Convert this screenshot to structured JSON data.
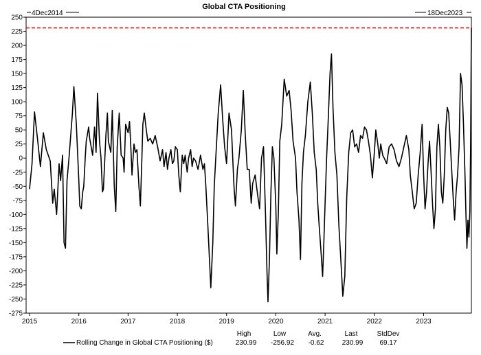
{
  "chart_data": {
    "type": "line",
    "title": "Global CTA Positioning",
    "range_start_label": "4Dec2014",
    "range_end_label": "18Dec2023",
    "x_ticks": [
      "2015",
      "2016",
      "2017",
      "2018",
      "2019",
      "2020",
      "2021",
      "2022",
      "2023"
    ],
    "y_ticks": [
      250,
      225,
      200,
      175,
      150,
      125,
      100,
      75,
      50,
      25,
      0,
      -25,
      -50,
      -75,
      -100,
      -125,
      -150,
      -175,
      -200,
      -225,
      -250,
      -275
    ],
    "xlim": [
      2014.93,
      2023.97
    ],
    "ylim": [
      -275,
      250
    ],
    "grid": false,
    "reference_line": {
      "value": 230.99,
      "color": "#e0191b",
      "style": "dashed"
    },
    "series": [
      {
        "name": "Rolling Change in Global CTA Positioning ($)",
        "color": "#000000",
        "points": [
          [
            2015.0,
            -55
          ],
          [
            2015.05,
            -10
          ],
          [
            2015.1,
            82
          ],
          [
            2015.16,
            35
          ],
          [
            2015.22,
            -15
          ],
          [
            2015.28,
            45
          ],
          [
            2015.34,
            15
          ],
          [
            2015.42,
            -5
          ],
          [
            2015.47,
            -80
          ],
          [
            2015.5,
            -55
          ],
          [
            2015.55,
            -100
          ],
          [
            2015.6,
            -10
          ],
          [
            2015.63,
            -40
          ],
          [
            2015.67,
            5
          ],
          [
            2015.7,
            -150
          ],
          [
            2015.73,
            -160
          ],
          [
            2015.76,
            -40
          ],
          [
            2015.8,
            0
          ],
          [
            2015.87,
            80
          ],
          [
            2015.9,
            127
          ],
          [
            2015.95,
            60
          ],
          [
            2016.0,
            -40
          ],
          [
            2016.02,
            -85
          ],
          [
            2016.05,
            -90
          ],
          [
            2016.08,
            -60
          ],
          [
            2016.1,
            -50
          ],
          [
            2016.13,
            0
          ],
          [
            2016.15,
            30
          ],
          [
            2016.2,
            55
          ],
          [
            2016.22,
            35
          ],
          [
            2016.28,
            5
          ],
          [
            2016.32,
            55
          ],
          [
            2016.35,
            10
          ],
          [
            2016.38,
            115
          ],
          [
            2016.42,
            30
          ],
          [
            2016.45,
            0
          ],
          [
            2016.48,
            -60
          ],
          [
            2016.5,
            -55
          ],
          [
            2016.55,
            40
          ],
          [
            2016.58,
            80
          ],
          [
            2016.6,
            30
          ],
          [
            2016.65,
            10
          ],
          [
            2016.68,
            85
          ],
          [
            2016.72,
            -50
          ],
          [
            2016.75,
            -95
          ],
          [
            2016.78,
            20
          ],
          [
            2016.82,
            80
          ],
          [
            2016.86,
            5
          ],
          [
            2016.9,
            0
          ],
          [
            2016.92,
            -25
          ],
          [
            2016.95,
            60
          ],
          [
            2017.0,
            45
          ],
          [
            2017.03,
            65
          ],
          [
            2017.05,
            30
          ],
          [
            2017.08,
            -30
          ],
          [
            2017.12,
            25
          ],
          [
            2017.15,
            10
          ],
          [
            2017.18,
            15
          ],
          [
            2017.22,
            -50
          ],
          [
            2017.25,
            -85
          ],
          [
            2017.28,
            0
          ],
          [
            2017.3,
            60
          ],
          [
            2017.33,
            80
          ],
          [
            2017.37,
            50
          ],
          [
            2017.4,
            30
          ],
          [
            2017.45,
            35
          ],
          [
            2017.5,
            25
          ],
          [
            2017.55,
            40
          ],
          [
            2017.6,
            20
          ],
          [
            2017.65,
            -5
          ],
          [
            2017.7,
            15
          ],
          [
            2017.73,
            -15
          ],
          [
            2017.77,
            10
          ],
          [
            2017.8,
            -20
          ],
          [
            2017.83,
            0
          ],
          [
            2017.87,
            15
          ],
          [
            2017.9,
            -10
          ],
          [
            2017.93,
            -5
          ],
          [
            2017.96,
            20
          ],
          [
            2018.0,
            15
          ],
          [
            2018.03,
            -30
          ],
          [
            2018.06,
            -60
          ],
          [
            2018.1,
            5
          ],
          [
            2018.13,
            -10
          ],
          [
            2018.16,
            5
          ],
          [
            2018.2,
            -25
          ],
          [
            2018.23,
            0
          ],
          [
            2018.27,
            15
          ],
          [
            2018.3,
            -15
          ],
          [
            2018.33,
            0
          ],
          [
            2018.37,
            -5
          ],
          [
            2018.42,
            -20
          ],
          [
            2018.47,
            5
          ],
          [
            2018.52,
            -20
          ],
          [
            2018.55,
            -10
          ],
          [
            2018.58,
            -50
          ],
          [
            2018.62,
            -120
          ],
          [
            2018.68,
            -230
          ],
          [
            2018.72,
            -150
          ],
          [
            2018.75,
            -50
          ],
          [
            2018.78,
            0
          ],
          [
            2018.83,
            80
          ],
          [
            2018.88,
            130
          ],
          [
            2018.92,
            70
          ],
          [
            2018.96,
            20
          ],
          [
            2019.0,
            -10
          ],
          [
            2019.05,
            80
          ],
          [
            2019.1,
            50
          ],
          [
            2019.15,
            -50
          ],
          [
            2019.18,
            -85
          ],
          [
            2019.22,
            -20
          ],
          [
            2019.25,
            0
          ],
          [
            2019.3,
            50
          ],
          [
            2019.34,
            120
          ],
          [
            2019.38,
            40
          ],
          [
            2019.42,
            -20
          ],
          [
            2019.46,
            -20
          ],
          [
            2019.5,
            -80
          ],
          [
            2019.53,
            -45
          ],
          [
            2019.58,
            -30
          ],
          [
            2019.63,
            -65
          ],
          [
            2019.67,
            -90
          ],
          [
            2019.71,
            0
          ],
          [
            2019.75,
            20
          ],
          [
            2019.79,
            -100
          ],
          [
            2019.82,
            -200
          ],
          [
            2019.84,
            -255
          ],
          [
            2019.87,
            -180
          ],
          [
            2019.9,
            -60
          ],
          [
            2019.93,
            20
          ],
          [
            2019.96,
            0
          ],
          [
            2020.0,
            -85
          ],
          [
            2020.02,
            -170
          ],
          [
            2020.05,
            -100
          ],
          [
            2020.08,
            30
          ],
          [
            2020.12,
            60
          ],
          [
            2020.17,
            140
          ],
          [
            2020.22,
            110
          ],
          [
            2020.27,
            120
          ],
          [
            2020.31,
            85
          ],
          [
            2020.35,
            30
          ],
          [
            2020.4,
            0
          ],
          [
            2020.43,
            -60
          ],
          [
            2020.47,
            -110
          ],
          [
            2020.5,
            -180
          ],
          [
            2020.53,
            -45
          ],
          [
            2020.56,
            10
          ],
          [
            2020.6,
            40
          ],
          [
            2020.65,
            100
          ],
          [
            2020.7,
            135
          ],
          [
            2020.74,
            80
          ],
          [
            2020.78,
            10
          ],
          [
            2020.82,
            -20
          ],
          [
            2020.85,
            -80
          ],
          [
            2020.88,
            -120
          ],
          [
            2020.92,
            -170
          ],
          [
            2020.95,
            -210
          ],
          [
            2020.97,
            -160
          ],
          [
            2021.0,
            -80
          ],
          [
            2021.03,
            0
          ],
          [
            2021.06,
            60
          ],
          [
            2021.1,
            150
          ],
          [
            2021.13,
            185
          ],
          [
            2021.16,
            90
          ],
          [
            2021.2,
            10
          ],
          [
            2021.24,
            -30
          ],
          [
            2021.28,
            -120
          ],
          [
            2021.32,
            -180
          ],
          [
            2021.36,
            -245
          ],
          [
            2021.4,
            -210
          ],
          [
            2021.44,
            -70
          ],
          [
            2021.48,
            10
          ],
          [
            2021.52,
            45
          ],
          [
            2021.56,
            50
          ],
          [
            2021.6,
            20
          ],
          [
            2021.64,
            25
          ],
          [
            2021.68,
            10
          ],
          [
            2021.72,
            40
          ],
          [
            2021.76,
            35
          ],
          [
            2021.8,
            55
          ],
          [
            2021.84,
            50
          ],
          [
            2021.88,
            30
          ],
          [
            2021.92,
            5
          ],
          [
            2021.96,
            -35
          ],
          [
            2022.0,
            10
          ],
          [
            2022.03,
            50
          ],
          [
            2022.07,
            25
          ],
          [
            2022.1,
            0
          ],
          [
            2022.13,
            25
          ],
          [
            2022.17,
            5
          ],
          [
            2022.2,
            0
          ],
          [
            2022.25,
            -10
          ],
          [
            2022.3,
            20
          ],
          [
            2022.35,
            25
          ],
          [
            2022.4,
            15
          ],
          [
            2022.45,
            -5
          ],
          [
            2022.5,
            -15
          ],
          [
            2022.55,
            0
          ],
          [
            2022.6,
            20
          ],
          [
            2022.65,
            40
          ],
          [
            2022.7,
            15
          ],
          [
            2022.73,
            -30
          ],
          [
            2022.77,
            -60
          ],
          [
            2022.81,
            -90
          ],
          [
            2022.85,
            -80
          ],
          [
            2022.89,
            -30
          ],
          [
            2022.93,
            10
          ],
          [
            2022.97,
            60
          ],
          [
            2023.0,
            -30
          ],
          [
            2023.03,
            -90
          ],
          [
            2023.06,
            -60
          ],
          [
            2023.09,
            -10
          ],
          [
            2023.12,
            30
          ],
          [
            2023.15,
            -20
          ],
          [
            2023.18,
            -80
          ],
          [
            2023.21,
            -125
          ],
          [
            2023.24,
            -90
          ],
          [
            2023.27,
            20
          ],
          [
            2023.3,
            60
          ],
          [
            2023.33,
            20
          ],
          [
            2023.36,
            -60
          ],
          [
            2023.39,
            -80
          ],
          [
            2023.42,
            -30
          ],
          [
            2023.45,
            50
          ],
          [
            2023.48,
            90
          ],
          [
            2023.51,
            80
          ],
          [
            2023.54,
            30
          ],
          [
            2023.57,
            -20
          ],
          [
            2023.6,
            -70
          ],
          [
            2023.63,
            -110
          ],
          [
            2023.66,
            -60
          ],
          [
            2023.69,
            -30
          ],
          [
            2023.72,
            20
          ],
          [
            2023.75,
            150
          ],
          [
            2023.78,
            130
          ],
          [
            2023.81,
            60
          ],
          [
            2023.84,
            -30
          ],
          [
            2023.86,
            -100
          ],
          [
            2023.88,
            -160
          ],
          [
            2023.9,
            -110
          ],
          [
            2023.92,
            -140
          ],
          [
            2023.94,
            -95
          ],
          [
            2023.955,
            25
          ],
          [
            2023.965,
            160
          ],
          [
            2023.97,
            230.99
          ]
        ]
      }
    ]
  },
  "legend": {
    "series_label": "Rolling Change in Global CTA Positioning ($)",
    "headers": [
      "High",
      "Low",
      "Avg.",
      "Last",
      "StdDev"
    ],
    "values": [
      "230.99",
      "-256.92",
      "-0.62",
      "230.99",
      "69.17"
    ]
  }
}
